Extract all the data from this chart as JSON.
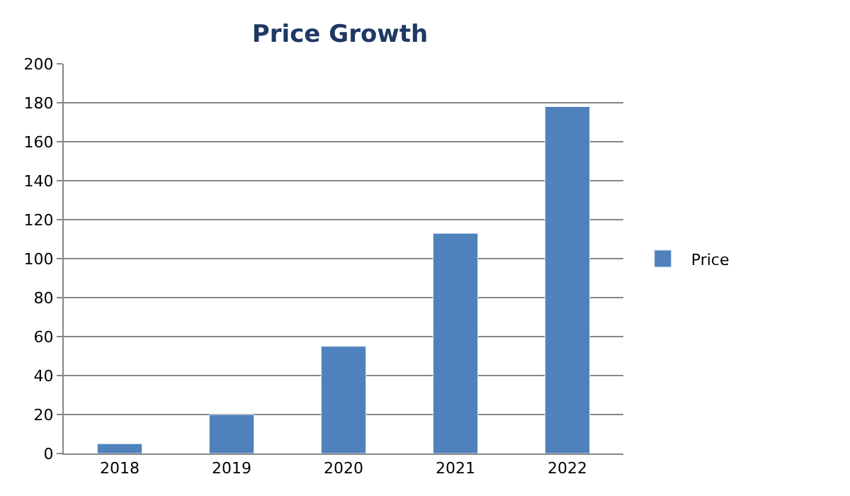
{
  "chart_data": {
    "type": "bar",
    "title": "Price Growth",
    "categories": [
      "2018",
      "2019",
      "2020",
      "2021",
      "2022"
    ],
    "series": [
      {
        "name": "Price",
        "color": "#4f81bd",
        "values": [
          5,
          20,
          55,
          113,
          178
        ]
      }
    ],
    "ylim": [
      0,
      200
    ],
    "yticks": [
      0,
      20,
      40,
      60,
      80,
      100,
      120,
      140,
      160,
      180,
      200
    ],
    "grid": "y",
    "legend": "right"
  }
}
